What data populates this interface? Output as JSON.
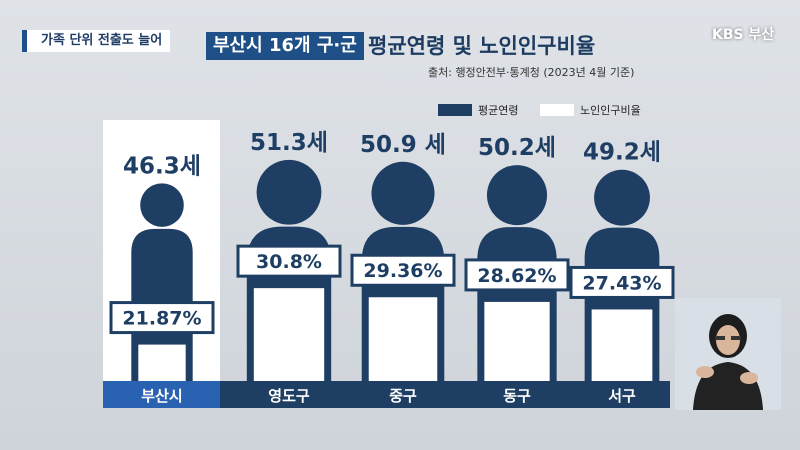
{
  "header": {
    "tag": "가족 단위 전출도 늘어",
    "title_box": "부산시 16개 구·군",
    "title_main": "평균연령 및 노인인구비율",
    "source": "출처: 행정안전부·통계청 (2023년 4월 기준)",
    "broadcaster": "KBS 부산"
  },
  "legend": [
    {
      "label": "평균연령",
      "color": "#1e3e63"
    },
    {
      "label": "노인인구비율",
      "color": "#ffffff"
    }
  ],
  "chart_data": {
    "type": "bar",
    "categories": [
      "부산시",
      "영도구",
      "중구",
      "동구",
      "서구"
    ],
    "series": [
      {
        "name": "평균연령",
        "values": [
          46.3,
          51.3,
          50.9,
          50.2,
          49.2
        ],
        "labels": [
          "46.3세",
          "51.3세",
          "50.9 세",
          "50.2세",
          "49.2세"
        ]
      },
      {
        "name": "노인인구비율",
        "values": [
          21.87,
          30.8,
          29.36,
          28.62,
          27.43
        ],
        "labels": [
          "21.87%",
          "30.8%",
          "29.36%",
          "28.62%",
          "27.43%"
        ]
      }
    ],
    "highlight_category": "부산시",
    "colors": {
      "age": "#1e3e63",
      "ratio": "#ffffff",
      "highlight_axis": "#2a62b2"
    }
  }
}
